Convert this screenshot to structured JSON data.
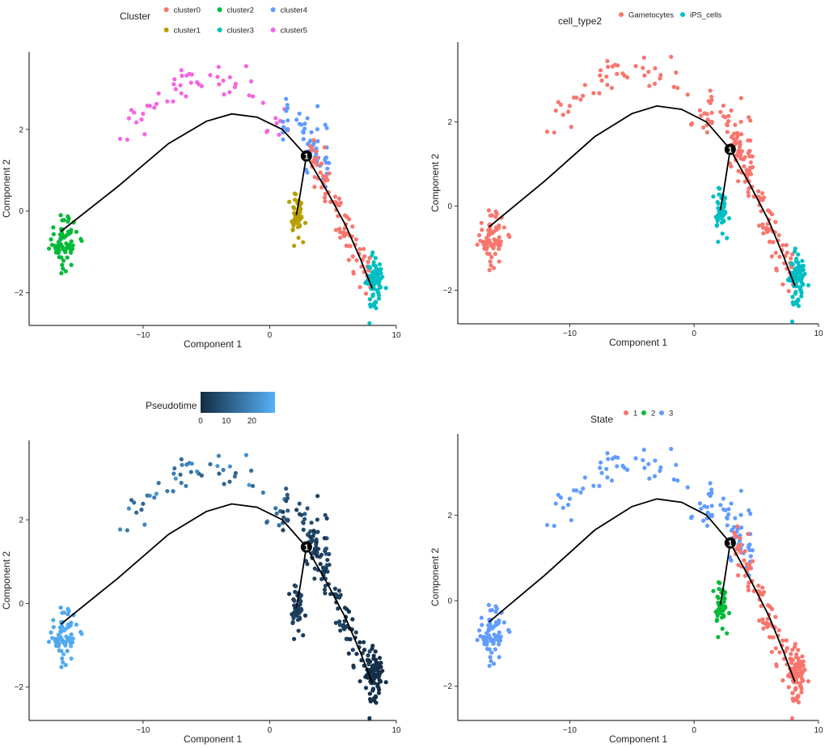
{
  "chart_data": [
    {
      "type": "scatter",
      "xlabel": "Component 1",
      "ylabel": "Component 2",
      "xlim": [
        -19,
        10
      ],
      "ylim": [
        -2.8,
        3.9
      ],
      "xticks": [
        -10,
        0,
        10
      ],
      "yticks": [
        -2,
        0,
        2
      ],
      "legend": {
        "title": "Cluster",
        "kind": "categorical",
        "entries": [
          {
            "label": "cluster0",
            "color": "#F8766D"
          },
          {
            "label": "cluster1",
            "color": "#B79F00"
          },
          {
            "label": "cluster2",
            "color": "#00BA38"
          },
          {
            "label": "cluster3",
            "color": "#00BFC4"
          },
          {
            "label": "cluster4",
            "color": "#619CFF"
          },
          {
            "label": "cluster5",
            "color": "#F564E3"
          }
        ]
      },
      "color_mode": "cluster",
      "branch_label": "1"
    },
    {
      "type": "scatter",
      "xlabel": "Component 1",
      "ylabel": "Component 2",
      "xlim": [
        -19,
        10
      ],
      "ylim": [
        -2.8,
        3.9
      ],
      "xticks": [
        -10,
        0,
        10
      ],
      "yticks": [
        -2,
        0,
        2
      ],
      "legend": {
        "title": "cell_type2",
        "kind": "categorical",
        "entries": [
          {
            "label": "Gametocytes",
            "color": "#F8766D"
          },
          {
            "label": "iPS_cells",
            "color": "#00BFC4"
          }
        ]
      },
      "color_mode": "celltype",
      "branch_label": "1"
    },
    {
      "type": "scatter",
      "xlabel": "Component 1",
      "ylabel": "Component 2",
      "xlim": [
        -19,
        10
      ],
      "ylim": [
        -2.8,
        3.9
      ],
      "xticks": [
        -10,
        0,
        10
      ],
      "yticks": [
        -2,
        0,
        2
      ],
      "legend": {
        "title": "Pseudotime",
        "kind": "gradient",
        "low_color": "#132B43",
        "high_color": "#56B1F7",
        "range": [
          0,
          29
        ],
        "ticks": [
          "0",
          "10",
          "20"
        ]
      },
      "color_mode": "pseudotime",
      "branch_label": "1"
    },
    {
      "type": "scatter",
      "xlabel": "Component 1",
      "ylabel": "Component 2",
      "xlim": [
        -19,
        10
      ],
      "ylim": [
        -2.8,
        3.9
      ],
      "xticks": [
        -10,
        0,
        10
      ],
      "yticks": [
        -2,
        0,
        2
      ],
      "legend": {
        "title": "State",
        "kind": "categorical",
        "entries": [
          {
            "label": "1",
            "color": "#F8766D"
          },
          {
            "label": "2",
            "color": "#00BA38"
          },
          {
            "label": "3",
            "color": "#619CFF"
          }
        ]
      },
      "color_mode": "state",
      "branch_label": "1"
    }
  ],
  "trajectory": {
    "main_path": [
      [
        -16.5,
        -0.5
      ],
      [
        -12,
        0.6
      ],
      [
        -8,
        1.65
      ],
      [
        -5,
        2.2
      ],
      [
        -3,
        2.38
      ],
      [
        -1,
        2.3
      ],
      [
        1,
        2.0
      ],
      [
        2.9,
        1.35
      ],
      [
        4.5,
        0.5
      ],
      [
        6,
        -0.35
      ],
      [
        7.2,
        -1.2
      ],
      [
        8.1,
        -1.9
      ]
    ],
    "side_branch": [
      [
        2.9,
        1.35
      ],
      [
        2.4,
        0.4
      ],
      [
        2.1,
        -0.1
      ]
    ],
    "branch_point": [
      2.9,
      1.35
    ]
  },
  "cells": {
    "left_arm": {
      "count": 70,
      "center": [
        -16.3,
        -0.75
      ],
      "spread": [
        0.55,
        0.32
      ],
      "cluster": "cluster2",
      "celltype": "Gametocytes",
      "state": "3",
      "pseudotime": [
        26,
        29
      ]
    },
    "upper_arc": {
      "count": 55,
      "center": [
        -4,
        2.9
      ],
      "spread": [
        4.5,
        0.6
      ],
      "cluster": "cluster5",
      "celltype": "Gametocytes",
      "state": "3",
      "pseudotime": [
        12,
        24
      ]
    },
    "right_top": {
      "count": 55,
      "center": [
        2.5,
        1.9
      ],
      "spread": [
        1.6,
        0.45
      ],
      "cluster": "cluster4",
      "celltype": "Gametocytes",
      "state": "3",
      "pseudotime": [
        4,
        11
      ]
    },
    "right_arm": {
      "count": 95,
      "center": [
        6.2,
        -0.4
      ],
      "spread": [
        1.0,
        0.9
      ],
      "cluster": "cluster0",
      "celltype": "Gametocytes",
      "state": "1",
      "pseudotime": [
        1,
        6
      ]
    },
    "bottom_tip": {
      "count": 80,
      "center": [
        8.2,
        -1.75
      ],
      "spread": [
        0.3,
        0.35
      ],
      "cluster": "cluster3",
      "celltype": "iPS_cells",
      "state": "1",
      "pseudotime": [
        0,
        2
      ]
    },
    "branch_blob": {
      "count": 45,
      "center": [
        2.1,
        -0.1
      ],
      "spread": [
        0.3,
        0.25
      ],
      "cluster": "cluster1",
      "celltype": "iPS_cells",
      "state": "2",
      "pseudotime": [
        3,
        6
      ]
    }
  }
}
